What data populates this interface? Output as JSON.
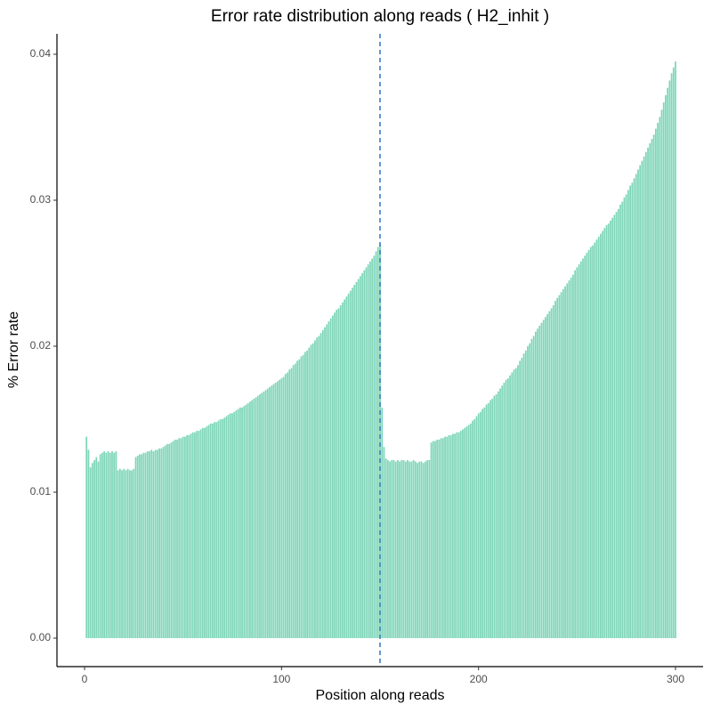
{
  "chart_data": {
    "type": "bar",
    "title": "Error rate distribution along reads ( H2_inhit )",
    "x_label": "Position along reads",
    "y_label": "% Error rate",
    "color": "#7fd6b9",
    "xlim": [
      -14,
      314
    ],
    "xticks": [
      0,
      100,
      200,
      300
    ],
    "ylim": [
      -0.00195,
      0.0414
    ],
    "yticks": [
      {
        "value": 0,
        "label": "0.00"
      },
      0.01,
      0.02,
      0.03,
      0.04
    ],
    "grid": false,
    "vline": {
      "x": 150,
      "color": "#3b7fbd",
      "style": "dashed"
    },
    "x": [
      1,
      2,
      3,
      4,
      5,
      6,
      7,
      8,
      9,
      10,
      11,
      12,
      13,
      14,
      15,
      16,
      17,
      18,
      19,
      20,
      21,
      22,
      23,
      24,
      25,
      26,
      27,
      28,
      29,
      30,
      31,
      32,
      33,
      34,
      35,
      36,
      37,
      38,
      39,
      40,
      41,
      42,
      43,
      44,
      45,
      46,
      47,
      48,
      49,
      50,
      51,
      52,
      53,
      54,
      55,
      56,
      57,
      58,
      59,
      60,
      61,
      62,
      63,
      64,
      65,
      66,
      67,
      68,
      69,
      70,
      71,
      72,
      73,
      74,
      75,
      76,
      77,
      78,
      79,
      80,
      81,
      82,
      83,
      84,
      85,
      86,
      87,
      88,
      89,
      90,
      91,
      92,
      93,
      94,
      95,
      96,
      97,
      98,
      99,
      100,
      101,
      102,
      103,
      104,
      105,
      106,
      107,
      108,
      109,
      110,
      111,
      112,
      113,
      114,
      115,
      116,
      117,
      118,
      119,
      120,
      121,
      122,
      123,
      124,
      125,
      126,
      127,
      128,
      129,
      130,
      131,
      132,
      133,
      134,
      135,
      136,
      137,
      138,
      139,
      140,
      141,
      142,
      143,
      144,
      145,
      146,
      147,
      148,
      149,
      150,
      151,
      152,
      153,
      154,
      155,
      156,
      157,
      158,
      159,
      160,
      161,
      162,
      163,
      164,
      165,
      166,
      167,
      168,
      169,
      170,
      171,
      172,
      173,
      174,
      175,
      176,
      177,
      178,
      179,
      180,
      181,
      182,
      183,
      184,
      185,
      186,
      187,
      188,
      189,
      190,
      191,
      192,
      193,
      194,
      195,
      196,
      197,
      198,
      199,
      200,
      201,
      202,
      203,
      204,
      205,
      206,
      207,
      208,
      209,
      210,
      211,
      212,
      213,
      214,
      215,
      216,
      217,
      218,
      219,
      220,
      221,
      222,
      223,
      224,
      225,
      226,
      227,
      228,
      229,
      230,
      231,
      232,
      233,
      234,
      235,
      236,
      237,
      238,
      239,
      240,
      241,
      242,
      243,
      244,
      245,
      246,
      247,
      248,
      249,
      250,
      251,
      252,
      253,
      254,
      255,
      256,
      257,
      258,
      259,
      260,
      261,
      262,
      263,
      264,
      265,
      266,
      267,
      268,
      269,
      270,
      271,
      272,
      273,
      274,
      275,
      276,
      277,
      278,
      279,
      280,
      281,
      282,
      283,
      284,
      285,
      286,
      287,
      288,
      289,
      290,
      291,
      292,
      293,
      294,
      295,
      296,
      297,
      298,
      299,
      300
    ],
    "values": [
      0.0138,
      0.0129,
      0.0117,
      0.012,
      0.0122,
      0.0124,
      0.0121,
      0.0126,
      0.0127,
      0.0128,
      0.0127,
      0.0128,
      0.0127,
      0.0128,
      0.0127,
      0.0128,
      0.0115,
      0.0116,
      0.0115,
      0.0116,
      0.0115,
      0.0116,
      0.0115,
      0.0115,
      0.0116,
      0.0124,
      0.0125,
      0.0126,
      0.0126,
      0.0127,
      0.0127,
      0.0128,
      0.0128,
      0.0129,
      0.0128,
      0.0129,
      0.0129,
      0.013,
      0.013,
      0.0131,
      0.0132,
      0.0133,
      0.0133,
      0.0134,
      0.0135,
      0.0136,
      0.0136,
      0.0137,
      0.0137,
      0.0138,
      0.0138,
      0.0139,
      0.0139,
      0.014,
      0.0141,
      0.0141,
      0.0142,
      0.0142,
      0.0143,
      0.0144,
      0.0144,
      0.0145,
      0.0146,
      0.0147,
      0.0147,
      0.0148,
      0.0148,
      0.0149,
      0.015,
      0.015,
      0.0151,
      0.0152,
      0.0153,
      0.0154,
      0.0154,
      0.0155,
      0.0156,
      0.0157,
      0.0158,
      0.0158,
      0.0159,
      0.016,
      0.0161,
      0.0162,
      0.0163,
      0.0164,
      0.0165,
      0.0166,
      0.0167,
      0.0168,
      0.0169,
      0.017,
      0.0171,
      0.0172,
      0.0173,
      0.0174,
      0.0175,
      0.0176,
      0.0177,
      0.0178,
      0.0179,
      0.0181,
      0.0182,
      0.0184,
      0.0185,
      0.0187,
      0.0188,
      0.019,
      0.0191,
      0.0193,
      0.0194,
      0.0196,
      0.0197,
      0.0199,
      0.0201,
      0.0202,
      0.0204,
      0.0206,
      0.0207,
      0.0209,
      0.0211,
      0.0213,
      0.0215,
      0.0217,
      0.0219,
      0.0221,
      0.0223,
      0.0225,
      0.0226,
      0.0228,
      0.023,
      0.0232,
      0.0234,
      0.0236,
      0.0238,
      0.024,
      0.0242,
      0.0244,
      0.0246,
      0.0248,
      0.025,
      0.0252,
      0.0254,
      0.0256,
      0.0258,
      0.026,
      0.0262,
      0.0265,
      0.0268,
      0.027,
      0.0158,
      0.0131,
      0.0123,
      0.0122,
      0.0121,
      0.0122,
      0.0122,
      0.0121,
      0.0122,
      0.0121,
      0.0122,
      0.0122,
      0.0121,
      0.0122,
      0.0121,
      0.0121,
      0.0122,
      0.0121,
      0.012,
      0.0121,
      0.0121,
      0.012,
      0.0121,
      0.0122,
      0.0122,
      0.0134,
      0.0135,
      0.0135,
      0.0136,
      0.0136,
      0.0137,
      0.0137,
      0.0138,
      0.0138,
      0.0139,
      0.0139,
      0.014,
      0.014,
      0.0141,
      0.0141,
      0.0142,
      0.0143,
      0.0144,
      0.0145,
      0.0146,
      0.0147,
      0.0149,
      0.015,
      0.0152,
      0.0154,
      0.0155,
      0.0157,
      0.0158,
      0.016,
      0.0161,
      0.0163,
      0.0164,
      0.0166,
      0.0167,
      0.0169,
      0.0171,
      0.0173,
      0.0175,
      0.0177,
      0.0178,
      0.018,
      0.0182,
      0.0184,
      0.0185,
      0.0187,
      0.019,
      0.0192,
      0.0195,
      0.0197,
      0.02,
      0.0202,
      0.0205,
      0.0207,
      0.021,
      0.0212,
      0.0214,
      0.0216,
      0.0218,
      0.022,
      0.0222,
      0.0224,
      0.0226,
      0.0228,
      0.0231,
      0.0233,
      0.0235,
      0.0237,
      0.0239,
      0.0241,
      0.0243,
      0.0245,
      0.0247,
      0.0249,
      0.0252,
      0.0254,
      0.0256,
      0.0258,
      0.026,
      0.0262,
      0.0264,
      0.0266,
      0.0268,
      0.0269,
      0.0271,
      0.0273,
      0.0275,
      0.0277,
      0.0279,
      0.0281,
      0.0283,
      0.0284,
      0.0286,
      0.0288,
      0.029,
      0.0292,
      0.0294,
      0.0297,
      0.0299,
      0.0302,
      0.0304,
      0.0307,
      0.031,
      0.0312,
      0.0315,
      0.0318,
      0.0321,
      0.0324,
      0.0327,
      0.033,
      0.0333,
      0.0336,
      0.0339,
      0.0342,
      0.0345,
      0.0349,
      0.0353,
      0.0357,
      0.0362,
      0.0367,
      0.0372,
      0.0377,
      0.0382,
      0.0387,
      0.0391,
      0.0395
    ]
  }
}
